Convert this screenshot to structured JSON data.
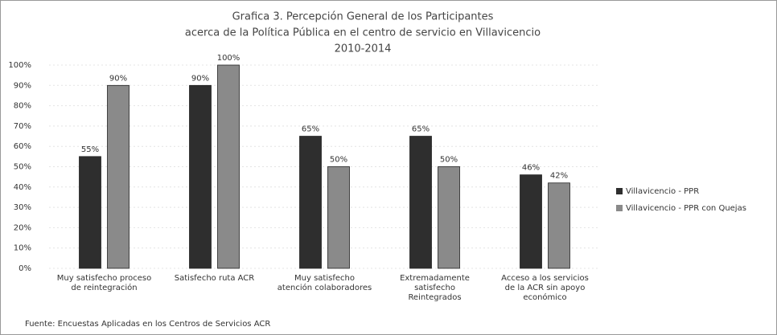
{
  "chart_data": {
    "type": "bar",
    "title": [
      "Grafica 3. Percepción General de los Participantes",
      "acerca de la Política Pública en el centro de servicio en Villavicencio",
      "2010-2014"
    ],
    "categories": [
      "Muy satisfecho proceso de reintegración",
      "Satisfecho ruta ACR",
      "Muy satisfecho atención colaboradores",
      "Extremadamente satisfecho Reintegrados",
      "Acceso a los servicios de la ACR sin apoyo económico"
    ],
    "series": [
      {
        "name": "Villavicencio - PPR",
        "color": "#2e2e2e",
        "values": [
          55,
          90,
          65,
          65,
          46
        ],
        "value_labels": [
          "55%",
          "90%",
          "65%",
          "65%",
          "46%"
        ]
      },
      {
        "name": "Villavicencio - PPR con Quejas",
        "color": "#8a8a8a",
        "values": [
          90,
          100,
          50,
          50,
          42
        ],
        "value_labels": [
          "90%",
          "100%",
          "50%",
          "50%",
          "42%"
        ]
      }
    ],
    "ylim": [
      0,
      100
    ],
    "yticks": [
      {
        "value": 0,
        "label": "0%"
      },
      {
        "value": 10,
        "label": "10%"
      },
      {
        "value": 20,
        "label": "20%"
      },
      {
        "value": 30,
        "label": "30%"
      },
      {
        "value": 40,
        "label": "40%"
      },
      {
        "value": 50,
        "label": "50%"
      },
      {
        "value": 60,
        "label": "60%"
      },
      {
        "value": 70,
        "label": "70%"
      },
      {
        "value": 80,
        "label": "80%"
      },
      {
        "value": 90,
        "label": "90%"
      },
      {
        "value": 100,
        "label": "100%"
      }
    ],
    "grid": true,
    "legend": "right",
    "source": "Fuente: Encuestas Aplicadas en los Centros de Servicios ACR"
  }
}
